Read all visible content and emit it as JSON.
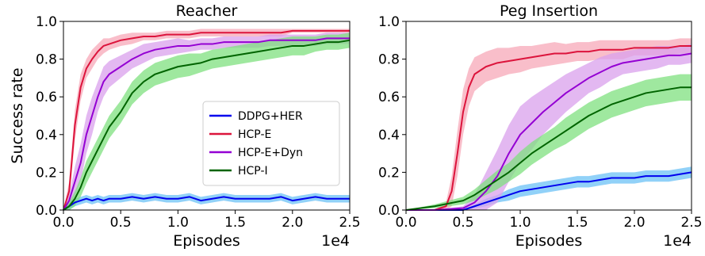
{
  "chart_data": [
    {
      "type": "line",
      "title": "Reacher",
      "xlabel": "Episodes",
      "ylabel": "Success rate",
      "x_offset_label": "1e4",
      "xlim": [
        0,
        2.5
      ],
      "ylim": [
        0,
        1.0
      ],
      "xticks": [
        "0.0",
        "0.5",
        "1.0",
        "1.5",
        "2.0",
        "2.5"
      ],
      "yticks": [
        "0.0",
        "0.2",
        "0.4",
        "0.6",
        "0.8",
        "1.0"
      ],
      "legend": "center-right",
      "series": [
        {
          "name": "DDPG+HER",
          "color": "#0000ee",
          "band_color": "#6cc2f5",
          "x": [
            0.0,
            0.05,
            0.1,
            0.15,
            0.2,
            0.25,
            0.3,
            0.35,
            0.4,
            0.5,
            0.6,
            0.7,
            0.8,
            0.9,
            1.0,
            1.1,
            1.2,
            1.3,
            1.4,
            1.5,
            1.6,
            1.7,
            1.8,
            1.9,
            2.0,
            2.1,
            2.2,
            2.3,
            2.4,
            2.5
          ],
          "y": [
            0.0,
            0.02,
            0.04,
            0.05,
            0.06,
            0.05,
            0.06,
            0.05,
            0.06,
            0.06,
            0.07,
            0.06,
            0.07,
            0.06,
            0.06,
            0.07,
            0.05,
            0.06,
            0.07,
            0.06,
            0.06,
            0.06,
            0.06,
            0.07,
            0.05,
            0.06,
            0.07,
            0.06,
            0.06,
            0.06
          ],
          "band": [
            0.0,
            0.02,
            0.02,
            0.02,
            0.02,
            0.02,
            0.02,
            0.02,
            0.02,
            0.02,
            0.02,
            0.02,
            0.02,
            0.02,
            0.02,
            0.02,
            0.02,
            0.02,
            0.02,
            0.02,
            0.02,
            0.02,
            0.02,
            0.02,
            0.02,
            0.02,
            0.02,
            0.02,
            0.02,
            0.02
          ]
        },
        {
          "name": "HCP-E",
          "color": "#dc143c",
          "band_color": "#f7a8b8",
          "x": [
            0.0,
            0.05,
            0.1,
            0.15,
            0.2,
            0.25,
            0.3,
            0.35,
            0.4,
            0.5,
            0.6,
            0.7,
            0.8,
            0.9,
            1.0,
            1.1,
            1.2,
            1.3,
            1.4,
            1.5,
            1.6,
            1.7,
            1.8,
            1.9,
            2.0,
            2.1,
            2.2,
            2.3,
            2.4,
            2.5
          ],
          "y": [
            0.0,
            0.1,
            0.45,
            0.65,
            0.75,
            0.8,
            0.84,
            0.87,
            0.88,
            0.9,
            0.91,
            0.92,
            0.92,
            0.93,
            0.93,
            0.93,
            0.94,
            0.94,
            0.94,
            0.94,
            0.94,
            0.94,
            0.94,
            0.94,
            0.95,
            0.95,
            0.95,
            0.95,
            0.95,
            0.95
          ],
          "band": [
            0.0,
            0.05,
            0.08,
            0.07,
            0.05,
            0.05,
            0.04,
            0.04,
            0.03,
            0.03,
            0.03,
            0.02,
            0.02,
            0.02,
            0.02,
            0.02,
            0.02,
            0.02,
            0.02,
            0.02,
            0.02,
            0.02,
            0.02,
            0.02,
            0.01,
            0.01,
            0.01,
            0.01,
            0.01,
            0.01
          ]
        },
        {
          "name": "HCP-E+Dyn",
          "color": "#9400d3",
          "band_color": "#d9a0ec",
          "x": [
            0.0,
            0.05,
            0.1,
            0.15,
            0.2,
            0.25,
            0.3,
            0.35,
            0.4,
            0.5,
            0.6,
            0.7,
            0.8,
            0.9,
            1.0,
            1.1,
            1.2,
            1.3,
            1.4,
            1.5,
            1.6,
            1.7,
            1.8,
            1.9,
            2.0,
            2.1,
            2.2,
            2.3,
            2.4,
            2.5
          ],
          "y": [
            0.0,
            0.05,
            0.15,
            0.25,
            0.4,
            0.5,
            0.6,
            0.68,
            0.72,
            0.76,
            0.8,
            0.83,
            0.85,
            0.86,
            0.87,
            0.87,
            0.88,
            0.88,
            0.89,
            0.89,
            0.89,
            0.89,
            0.9,
            0.9,
            0.9,
            0.9,
            0.9,
            0.91,
            0.91,
            0.91
          ],
          "band": [
            0.0,
            0.03,
            0.08,
            0.1,
            0.1,
            0.1,
            0.08,
            0.08,
            0.07,
            0.06,
            0.05,
            0.05,
            0.04,
            0.04,
            0.04,
            0.03,
            0.03,
            0.03,
            0.03,
            0.03,
            0.03,
            0.03,
            0.03,
            0.03,
            0.03,
            0.03,
            0.03,
            0.03,
            0.03,
            0.03
          ]
        },
        {
          "name": "HCP-I",
          "color": "#006400",
          "band_color": "#7fe07f",
          "x": [
            0.0,
            0.05,
            0.1,
            0.15,
            0.2,
            0.25,
            0.3,
            0.35,
            0.4,
            0.5,
            0.6,
            0.7,
            0.8,
            0.9,
            1.0,
            1.1,
            1.2,
            1.3,
            1.4,
            1.5,
            1.6,
            1.7,
            1.8,
            1.9,
            2.0,
            2.1,
            2.2,
            2.3,
            2.4,
            2.5
          ],
          "y": [
            0.0,
            0.02,
            0.06,
            0.12,
            0.2,
            0.26,
            0.32,
            0.38,
            0.44,
            0.52,
            0.62,
            0.68,
            0.72,
            0.74,
            0.76,
            0.77,
            0.78,
            0.8,
            0.81,
            0.82,
            0.83,
            0.84,
            0.85,
            0.86,
            0.87,
            0.87,
            0.88,
            0.89,
            0.89,
            0.9
          ],
          "band": [
            0.0,
            0.02,
            0.04,
            0.05,
            0.06,
            0.06,
            0.06,
            0.06,
            0.06,
            0.06,
            0.06,
            0.06,
            0.06,
            0.06,
            0.06,
            0.06,
            0.05,
            0.05,
            0.05,
            0.05,
            0.05,
            0.05,
            0.05,
            0.05,
            0.05,
            0.05,
            0.04,
            0.04,
            0.04,
            0.04
          ]
        }
      ]
    },
    {
      "type": "line",
      "title": "Peg Insertion",
      "xlabel": "Episodes",
      "ylabel": "",
      "x_offset_label": "1e4",
      "xlim": [
        0,
        2.5
      ],
      "ylim": [
        0,
        1.0
      ],
      "xticks": [
        "0.0",
        "0.5",
        "1.0",
        "1.5",
        "2.0",
        "2.5"
      ],
      "yticks": [
        "0.0",
        "0.2",
        "0.4",
        "0.6",
        "0.8",
        "1.0"
      ],
      "series": [
        {
          "name": "DDPG+HER",
          "color": "#0000ee",
          "band_color": "#6cc2f5",
          "x": [
            0.0,
            0.25,
            0.5,
            0.6,
            0.7,
            0.8,
            0.9,
            1.0,
            1.1,
            1.2,
            1.3,
            1.4,
            1.5,
            1.6,
            1.7,
            1.8,
            1.9,
            2.0,
            2.1,
            2.2,
            2.3,
            2.4,
            2.5
          ],
          "y": [
            0.0,
            0.0,
            0.0,
            0.02,
            0.04,
            0.06,
            0.08,
            0.1,
            0.11,
            0.12,
            0.13,
            0.14,
            0.15,
            0.15,
            0.16,
            0.17,
            0.17,
            0.17,
            0.18,
            0.18,
            0.18,
            0.19,
            0.2
          ],
          "band": [
            0.0,
            0.0,
            0.0,
            0.01,
            0.02,
            0.02,
            0.03,
            0.03,
            0.03,
            0.03,
            0.03,
            0.03,
            0.03,
            0.03,
            0.03,
            0.03,
            0.03,
            0.03,
            0.03,
            0.03,
            0.03,
            0.03,
            0.03
          ]
        },
        {
          "name": "HCP-E",
          "color": "#dc143c",
          "band_color": "#f7a8b8",
          "x": [
            0.0,
            0.25,
            0.35,
            0.4,
            0.45,
            0.5,
            0.55,
            0.6,
            0.7,
            0.8,
            0.9,
            1.0,
            1.1,
            1.2,
            1.3,
            1.4,
            1.5,
            1.6,
            1.7,
            1.8,
            1.9,
            2.0,
            2.1,
            2.2,
            2.3,
            2.4,
            2.5
          ],
          "y": [
            0.0,
            0.0,
            0.02,
            0.1,
            0.3,
            0.52,
            0.65,
            0.72,
            0.76,
            0.78,
            0.79,
            0.8,
            0.81,
            0.82,
            0.83,
            0.83,
            0.84,
            0.84,
            0.85,
            0.85,
            0.85,
            0.86,
            0.86,
            0.86,
            0.86,
            0.87,
            0.87
          ],
          "band": [
            0.0,
            0.0,
            0.02,
            0.08,
            0.12,
            0.12,
            0.1,
            0.09,
            0.08,
            0.08,
            0.07,
            0.07,
            0.06,
            0.06,
            0.06,
            0.05,
            0.05,
            0.05,
            0.05,
            0.05,
            0.05,
            0.04,
            0.04,
            0.04,
            0.04,
            0.04,
            0.04
          ]
        },
        {
          "name": "HCP-E+Dyn",
          "color": "#9400d3",
          "band_color": "#d9a0ec",
          "x": [
            0.0,
            0.25,
            0.5,
            0.6,
            0.7,
            0.8,
            0.9,
            1.0,
            1.1,
            1.2,
            1.3,
            1.4,
            1.5,
            1.6,
            1.7,
            1.8,
            1.9,
            2.0,
            2.1,
            2.2,
            2.3,
            2.4,
            2.5
          ],
          "y": [
            0.0,
            0.0,
            0.01,
            0.04,
            0.1,
            0.18,
            0.3,
            0.4,
            0.46,
            0.52,
            0.57,
            0.62,
            0.66,
            0.7,
            0.73,
            0.76,
            0.78,
            0.79,
            0.8,
            0.81,
            0.82,
            0.82,
            0.83
          ],
          "band": [
            0.0,
            0.0,
            0.01,
            0.04,
            0.1,
            0.14,
            0.15,
            0.15,
            0.14,
            0.12,
            0.11,
            0.1,
            0.09,
            0.08,
            0.08,
            0.07,
            0.06,
            0.06,
            0.06,
            0.06,
            0.05,
            0.05,
            0.05
          ]
        },
        {
          "name": "HCP-I",
          "color": "#006400",
          "band_color": "#7fe07f",
          "x": [
            0.0,
            0.25,
            0.5,
            0.6,
            0.7,
            0.8,
            0.9,
            1.0,
            1.1,
            1.2,
            1.3,
            1.4,
            1.5,
            1.6,
            1.7,
            1.8,
            1.9,
            2.0,
            2.1,
            2.2,
            2.3,
            2.4,
            2.5
          ],
          "y": [
            0.0,
            0.02,
            0.05,
            0.08,
            0.12,
            0.16,
            0.2,
            0.25,
            0.3,
            0.34,
            0.38,
            0.42,
            0.46,
            0.5,
            0.53,
            0.56,
            0.58,
            0.6,
            0.62,
            0.63,
            0.64,
            0.65,
            0.65
          ],
          "band": [
            0.0,
            0.01,
            0.02,
            0.03,
            0.04,
            0.05,
            0.05,
            0.06,
            0.06,
            0.06,
            0.06,
            0.07,
            0.07,
            0.07,
            0.07,
            0.07,
            0.07,
            0.07,
            0.07,
            0.07,
            0.07,
            0.07,
            0.07
          ]
        }
      ]
    }
  ]
}
